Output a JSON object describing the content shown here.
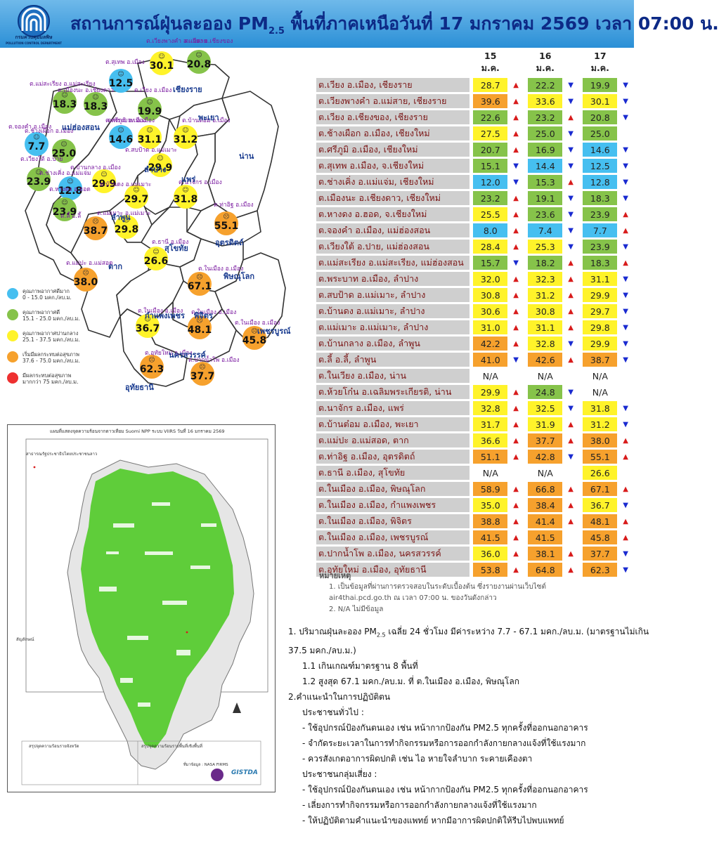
{
  "header": {
    "title_part1": "สถานการณ์ฝุ่นละออง PM",
    "title_sub": "2.5",
    "title_part2": " พื้นที่ภาคเหนือวันที่ 17 มกราคม 2569 เวลา 07:00 น.",
    "logo_text": "กรมควบคุมมลพิษ",
    "logo_subtext": "POLLUTION CONTROL DEPARTMENT"
  },
  "colors": {
    "header_bg": "#3a9ee0",
    "very_good": "#46bff0",
    "good": "#86c34a",
    "moderate": "#fff32a",
    "start_effect": "#f6a12d",
    "unhealthy": "#ee3030"
  },
  "map": {
    "stations": [
      {
        "label": "ต.เวียงพางคำ อ.แม่สาย",
        "value": "30.1",
        "level": "moderate"
      },
      {
        "label": "ต.เวียง อ.เชียงของ",
        "value": "20.8",
        "level": "good"
      },
      {
        "label": "ต.สุเทพ อ.เมือง",
        "value": "12.5",
        "level": "very_good"
      },
      {
        "label": "ต.แม่สะเรียง อ.แม่สะเรียง",
        "value": "18.3",
        "level": "good"
      },
      {
        "label": "ต.เมืองนะ อ.เชียงดาว",
        "value": "18.3",
        "level": "good"
      },
      {
        "label": "ต.เวียง อ.เมือง",
        "value": "19.9",
        "level": "good"
      },
      {
        "label": "ต.จองคำ อ.เมือง",
        "value": "7.7",
        "level": "very_good"
      },
      {
        "label": "ต.ศรีภูมิ อ.เมือง",
        "value": "14.6",
        "level": "very_good"
      },
      {
        "label": "ต.พระบาท อ.เมือง",
        "value": "31.1",
        "level": "moderate"
      },
      {
        "label": "ต.บ้านต๋อม อ.เมือง",
        "value": "31.2",
        "level": "moderate"
      },
      {
        "label": "ต.ช้างเผือก อ.เมือง",
        "value": "25.0",
        "level": "good"
      },
      {
        "label": "ต.สบป้าด อ.แม่เมาะ",
        "value": "29.9",
        "level": "moderate"
      },
      {
        "label": "ต.เวียงใต้ อ.ปาย",
        "value": "23.9",
        "level": "good"
      },
      {
        "label": "ต.ช่างเคิ่ง อ.แม่แจ่ม",
        "value": "12.8",
        "level": "very_good"
      },
      {
        "label": "ต.บ้านกลาง อ.เมือง",
        "value": "29.9",
        "level": "moderate"
      },
      {
        "label": "ต.บ้านดง อ.แม่เมาะ",
        "value": "29.7",
        "level": "moderate"
      },
      {
        "label": "ต.นาจักร อ.เมือง",
        "value": "31.8",
        "level": "moderate"
      },
      {
        "label": "ต.หางดง อ.ฮอด",
        "value": "23.9",
        "level": "good"
      },
      {
        "label": "ต.ลี้ อ.ลี้",
        "value": "38.7",
        "level": "start_effect"
      },
      {
        "label": "ต.แม่เมาะ อ.แม่เมาะ",
        "value": "29.8",
        "level": "moderate"
      },
      {
        "label": "ต.ท่าอิฐ อ.เมือง",
        "value": "55.1",
        "level": "start_effect"
      },
      {
        "label": "ต.แม่ปะ อ.แม่สอด",
        "value": "38.0",
        "level": "start_effect"
      },
      {
        "label": "ต.ธานี อ.เมือง",
        "value": "26.6",
        "level": "moderate"
      },
      {
        "label": "ต.ในเมือง อ.เมือง",
        "value": "67.1",
        "level": "start_effect"
      },
      {
        "label": "ต.ในเมือง อ.เมือง",
        "value": "36.7",
        "level": "moderate"
      },
      {
        "label": "ต.ในเมือง อ.เมือง",
        "value": "48.1",
        "level": "start_effect"
      },
      {
        "label": "ต.ในเมือง อ.เมือง",
        "value": "45.8",
        "level": "start_effect"
      },
      {
        "label": "ต.อุทัยใหม่ อ.เมือง",
        "value": "62.3",
        "level": "start_effect"
      },
      {
        "label": "ต.ปากน้ำโพ อ.เมือง",
        "value": "37.7",
        "level": "start_effect"
      }
    ],
    "provinces": [
      "เชียงราย",
      "แม่ฮ่องสอน",
      "พะเยา",
      "น่าน",
      "ลำปาง",
      "แพร่",
      "ลำพูน",
      "อุตรดิตถ์",
      "สุโขทัย",
      "ตาก",
      "พิษณุโลก",
      "กำแพงเพชร",
      "พิจิตร",
      "เพชรบูรณ์",
      "นครสวรรค์",
      "อุทัยธานี"
    ],
    "legend": [
      {
        "label": "คุณภาพอากาศดีมาก",
        "range": "0 - 15.0 มคก./ลบ.ม.",
        "level": "very_good"
      },
      {
        "label": "คุณภาพอากาศดี",
        "range": "15.1 - 25.0 มคก./ลบ.ม.",
        "level": "good"
      },
      {
        "label": "คุณภาพอากาศปานกลาง",
        "range": "25.1 - 37.5 มคก./ลบ.ม.",
        "level": "moderate"
      },
      {
        "label": "เริ่มมีผลกระทบต่อสุขภาพ",
        "range": "37.6 - 75.0 มคก./ลบ.ม.",
        "level": "start_effect"
      },
      {
        "label": "มีผลกระทบต่อสุขภาพ",
        "range": "มากกว่า 75 มคก./ลบ.ม.",
        "level": "unhealthy"
      }
    ]
  },
  "satellite": {
    "title": "แผนที่แสดงจุดความร้อนจากดาวเทียม Suomi NPP ระบบ VIIRS วันที่ 16 มกราคม 2569",
    "left_label": "สาธารณรัฐประชาธิปไตยประชาชนลาว",
    "legend_title": "สัญลักษณ์",
    "footer_left": "สรุปจุดความร้อนรายจังหวัด",
    "footer_right": "สรุปจุดความร้อนรายพื้นที่เชิงพื้นที่",
    "agency": "GISTDA",
    "source": "ที่มาข้อมูล : NASA FIRMS"
  },
  "table": {
    "dates": [
      "15 ม.ค.",
      "16 ม.ค.",
      "17 ม.ค."
    ],
    "rows": [
      {
        "name": "ต.เวียง อ.เมือง, เชียงราย",
        "v": [
          "28.7",
          "22.2",
          "19.9"
        ],
        "c": [
          "moderate",
          "good",
          "good"
        ],
        "a": [
          "up",
          "down",
          "down"
        ]
      },
      {
        "name": "ต.เวียงพางคำ อ.แม่สาย, เชียงราย",
        "v": [
          "39.6",
          "33.6",
          "30.1"
        ],
        "c": [
          "start_effect",
          "moderate",
          "moderate"
        ],
        "a": [
          "up",
          "down",
          "down"
        ]
      },
      {
        "name": "ต.เวียง อ.เชียงของ, เชียงราย",
        "v": [
          "22.6",
          "23.2",
          "20.8"
        ],
        "c": [
          "good",
          "good",
          "good"
        ],
        "a": [
          "up",
          "up",
          "down"
        ]
      },
      {
        "name": "ต.ช้างเผือก อ.เมือง, เชียงใหม่",
        "v": [
          "27.5",
          "25.0",
          "25.0"
        ],
        "c": [
          "moderate",
          "good",
          "good"
        ],
        "a": [
          "up",
          "down",
          ""
        ]
      },
      {
        "name": "ต.ศรีภูมิ อ.เมือง, เชียงใหม่",
        "v": [
          "20.7",
          "16.9",
          "14.6"
        ],
        "c": [
          "good",
          "good",
          "very_good"
        ],
        "a": [
          "up",
          "down",
          "down"
        ]
      },
      {
        "name": "ต.สุเทพ อ.เมือง, จ.เชียงใหม่",
        "v": [
          "15.1",
          "14.4",
          "12.5"
        ],
        "c": [
          "good",
          "very_good",
          "very_good"
        ],
        "a": [
          "down",
          "down",
          "down"
        ]
      },
      {
        "name": "ต.ช่างเคิ่ง อ.แม่แจ่ม, เชียงใหม่",
        "v": [
          "12.0",
          "15.3",
          "12.8"
        ],
        "c": [
          "very_good",
          "good",
          "very_good"
        ],
        "a": [
          "down",
          "up",
          "down"
        ]
      },
      {
        "name": "ต.เมืองนะ อ.เชียงดาว, เชียงใหม่",
        "v": [
          "23.2",
          "19.1",
          "18.3"
        ],
        "c": [
          "good",
          "good",
          "good"
        ],
        "a": [
          "up",
          "down",
          "down"
        ]
      },
      {
        "name": "ต.หางดง อ.ฮอด, จ.เชียงใหม่",
        "v": [
          "25.5",
          "23.6",
          "23.9"
        ],
        "c": [
          "moderate",
          "good",
          "good"
        ],
        "a": [
          "up",
          "down",
          "up"
        ]
      },
      {
        "name": "ต.จองคำ อ.เมือง, แม่ฮ่องสอน",
        "v": [
          "8.0",
          "7.4",
          "7.7"
        ],
        "c": [
          "very_good",
          "very_good",
          "very_good"
        ],
        "a": [
          "up",
          "down",
          "up"
        ]
      },
      {
        "name": "ต.เวียงใต้ อ.ปาย, แม่ฮ่องสอน",
        "v": [
          "28.4",
          "25.3",
          "23.9"
        ],
        "c": [
          "moderate",
          "moderate",
          "good"
        ],
        "a": [
          "up",
          "down",
          "down"
        ]
      },
      {
        "name": "ต.แม่สะเรียง อ.แม่สะเรียง, แม่ฮ่องสอน",
        "v": [
          "15.7",
          "18.2",
          "18.3"
        ],
        "c": [
          "good",
          "good",
          "good"
        ],
        "a": [
          "down",
          "up",
          "up"
        ]
      },
      {
        "name": "ต.พระบาท อ.เมือง, ลำปาง",
        "v": [
          "32.0",
          "32.3",
          "31.1"
        ],
        "c": [
          "moderate",
          "moderate",
          "moderate"
        ],
        "a": [
          "up",
          "up",
          "down"
        ]
      },
      {
        "name": "ต.สบป้าด อ.แม่เมาะ, ลำปาง",
        "v": [
          "30.8",
          "31.2",
          "29.9"
        ],
        "c": [
          "moderate",
          "moderate",
          "moderate"
        ],
        "a": [
          "up",
          "up",
          "down"
        ]
      },
      {
        "name": "ต.บ้านดง อ.แม่เมาะ, ลำปาง",
        "v": [
          "30.6",
          "30.8",
          "29.7"
        ],
        "c": [
          "moderate",
          "moderate",
          "moderate"
        ],
        "a": [
          "up",
          "up",
          "down"
        ]
      },
      {
        "name": "ต.แม่เมาะ อ.แม่เมาะ, ลำปาง",
        "v": [
          "31.0",
          "31.1",
          "29.8"
        ],
        "c": [
          "moderate",
          "moderate",
          "moderate"
        ],
        "a": [
          "up",
          "up",
          "down"
        ]
      },
      {
        "name": "ต.บ้านกลาง อ.เมือง, ลำพูน",
        "v": [
          "42.2",
          "32.8",
          "29.9"
        ],
        "c": [
          "start_effect",
          "moderate",
          "moderate"
        ],
        "a": [
          "up",
          "down",
          "down"
        ]
      },
      {
        "name": "ต.ลี้ อ.ลี้, ลำพูน",
        "v": [
          "41.0",
          "42.6",
          "38.7"
        ],
        "c": [
          "start_effect",
          "start_effect",
          "start_effect"
        ],
        "a": [
          "down",
          "up",
          "down"
        ]
      },
      {
        "name": "ต.ในเวียง อ.เมือง, น่าน",
        "v": [
          "N/A",
          "N/A",
          "N/A"
        ],
        "c": [
          "",
          "",
          ""
        ],
        "a": [
          "",
          "",
          ""
        ]
      },
      {
        "name": "ต.ห้วยโก๋น อ.เฉลิมพระเกียรติ, น่าน",
        "v": [
          "29.9",
          "24.8",
          "N/A"
        ],
        "c": [
          "moderate",
          "good",
          ""
        ],
        "a": [
          "up",
          "down",
          ""
        ]
      },
      {
        "name": "ต.นาจักร อ.เมือง, แพร่",
        "v": [
          "32.8",
          "32.5",
          "31.8"
        ],
        "c": [
          "moderate",
          "moderate",
          "moderate"
        ],
        "a": [
          "up",
          "down",
          "down"
        ]
      },
      {
        "name": "ต.บ้านต๋อม อ.เมือง, พะเยา",
        "v": [
          "31.7",
          "31.9",
          "31.2"
        ],
        "c": [
          "moderate",
          "moderate",
          "moderate"
        ],
        "a": [
          "up",
          "up",
          "down"
        ]
      },
      {
        "name": "ต.แม่ปะ อ.แม่สอด, ตาก",
        "v": [
          "36.6",
          "37.7",
          "38.0"
        ],
        "c": [
          "moderate",
          "start_effect",
          "start_effect"
        ],
        "a": [
          "up",
          "up",
          "up"
        ]
      },
      {
        "name": "ต.ท่าอิฐ อ.เมือง, อุตรดิตถ์",
        "v": [
          "51.1",
          "42.8",
          "55.1"
        ],
        "c": [
          "start_effect",
          "start_effect",
          "start_effect"
        ],
        "a": [
          "up",
          "down",
          "up"
        ]
      },
      {
        "name": "ต.ธานี อ.เมือง, สุโขทัย",
        "v": [
          "N/A",
          "N/A",
          "26.6"
        ],
        "c": [
          "",
          "",
          "moderate"
        ],
        "a": [
          "",
          "",
          ""
        ]
      },
      {
        "name": "ต.ในเมือง อ.เมือง, พิษณุโลก",
        "v": [
          "58.9",
          "66.8",
          "67.1"
        ],
        "c": [
          "start_effect",
          "start_effect",
          "start_effect"
        ],
        "a": [
          "up",
          "up",
          "up"
        ]
      },
      {
        "name": "ต.ในเมือง อ.เมือง, กำแพงเพชร",
        "v": [
          "35.0",
          "38.4",
          "36.7"
        ],
        "c": [
          "moderate",
          "start_effect",
          "moderate"
        ],
        "a": [
          "up",
          "up",
          "down"
        ]
      },
      {
        "name": "ต.ในเมือง อ.เมือง, พิจิตร",
        "v": [
          "38.8",
          "41.4",
          "48.1"
        ],
        "c": [
          "start_effect",
          "start_effect",
          "start_effect"
        ],
        "a": [
          "up",
          "up",
          "up"
        ]
      },
      {
        "name": "ต.ในเมือง อ.เมือง, เพชรบูรณ์",
        "v": [
          "41.5",
          "41.5",
          "45.8"
        ],
        "c": [
          "start_effect",
          "start_effect",
          "start_effect"
        ],
        "a": [
          "up",
          "",
          "up"
        ]
      },
      {
        "name": "ต.ปากน้ำโพ อ.เมือง, นครสวรรค์",
        "v": [
          "36.0",
          "38.1",
          "37.7"
        ],
        "c": [
          "moderate",
          "start_effect",
          "start_effect"
        ],
        "a": [
          "up",
          "up",
          "down"
        ]
      },
      {
        "name": "ต.อุทัยใหม่ อ.เมือง, อุทัยธานี",
        "v": [
          "53.8",
          "64.8",
          "62.3"
        ],
        "c": [
          "start_effect",
          "start_effect",
          "start_effect"
        ],
        "a": [
          "up",
          "up",
          "down"
        ]
      }
    ]
  },
  "notes": {
    "title": "หมายเหตุ",
    "n1": "1. เป็นข้อมูลที่ผ่านการตรวจสอบในระดับเบื้องต้น ซึ่งรายงานผ่านเว็บไซต์",
    "n1b": "air4thai.pcd.go.th ณ เวลา 07:00 น. ของวันดังกล่าว",
    "n2": "2. N/A ไม่มีข้อมูล"
  },
  "summary": {
    "l1a": "1. ปริมาณฝุ่นละออง PM",
    "l1sub": "2.5",
    "l1b": " เฉลี่ย 24 ชั่วโมง มีค่าระหว่าง 7.7 - 67.1 มคก./ลบ.ม. (มาตรฐานไม่เกิน",
    "l1c": "37.5 มคก./ลบ.ม.)",
    "l2": "1.1 เกินเกณฑ์มาตรฐาน 8 พื้นที่",
    "l3": "1.2 สูงสุด 67.1 มคก./ลบ.ม. ที่ ต.ในเมือง อ.เมือง, พิษณุโลก",
    "l4": "2.คำแนะนำในการปฏิบัติตน",
    "l5": "ประชาชนทั่วไป :",
    "l6": "- ใช้อุปกรณ์ป้องกันตนเอง เช่น หน้ากากป้องกัน PM2.5 ทุกครั้งที่ออกนอกอาคาร",
    "l7": "- จำกัดระยะเวลาในการทำกิจกรรมหรือการออกกำลังกายกลางแจ้งที่ใช้แรงมาก",
    "l8": "- ควรสังเกตอาการผิดปกติ เช่น ไอ หายใจลำบาก ระคายเคืองตา",
    "l9": "ประชาชนกลุ่มเสี่ยง :",
    "l10": "- ใช้อุปกรณ์ป้องกันตนเอง เช่น หน้ากากป้องกัน PM2.5 ทุกครั้งที่ออกนอกอาคาร",
    "l11": "- เลี่ยงการทำกิจกรรมหรือการออกกำลังกายกลางแจ้งที่ใช้แรงมาก",
    "l12": "- ให้ปฏิบัติตามคำแนะนำของแพทย์ หากมีอาการผิดปกติให้รีบไปพบแพทย์"
  }
}
